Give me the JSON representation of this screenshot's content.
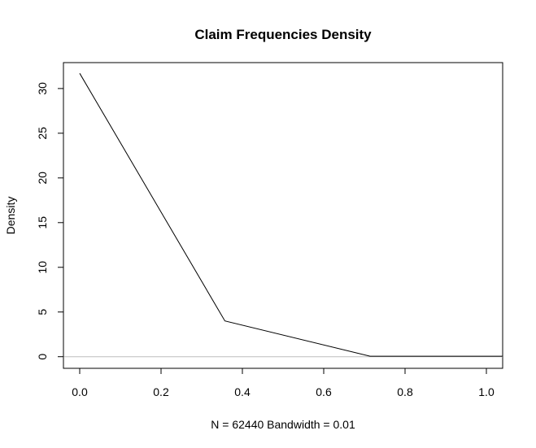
{
  "chart_data": {
    "type": "line",
    "title": "Claim Frequencies Density",
    "xlabel": "N = 62440   Bandwidth = 0.01",
    "ylabel": "Density",
    "xlim": [
      -0.04,
      1.04
    ],
    "ylim": [
      -1.3,
      32.9
    ],
    "x_ticks": [
      0.0,
      0.2,
      0.4,
      0.6,
      0.8,
      1.0
    ],
    "x_tick_labels": [
      "0.0",
      "0.2",
      "0.4",
      "0.6",
      "0.8",
      "1.0"
    ],
    "y_ticks": [
      0,
      5,
      10,
      15,
      20,
      25,
      30
    ],
    "y_tick_labels": [
      "0",
      "5",
      "10",
      "15",
      "20",
      "25",
      "30"
    ],
    "baseline_y": 0,
    "grid": false,
    "series": [
      {
        "x": [
          0.0,
          0.357,
          0.714,
          1.04
        ],
        "y": [
          31.7,
          4.0,
          0.05,
          0.05
        ],
        "color": "#000000"
      }
    ],
    "baseline_color": "#bdbdbd"
  }
}
